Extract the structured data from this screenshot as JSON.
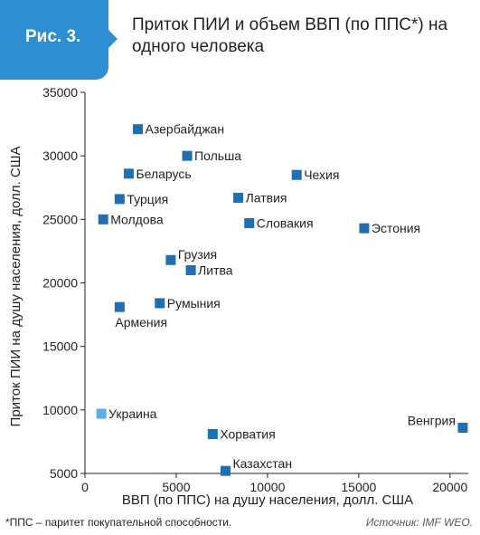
{
  "figure": {
    "badge": "Рис. 3.",
    "title": "Приток ПИИ и объем ВВП (по ППС*) на одного человека"
  },
  "footnote": "*ППС – паритет покупательной способности.",
  "source": "Источник: IMF WEO.",
  "colors": {
    "accent": "#2d8ed2",
    "point": "#1f6fb6",
    "highlight": "#5ab0e6",
    "axis": "#231f20"
  },
  "chart_data": {
    "type": "scatter",
    "title": "Приток ПИИ и объем ВВП (по ППС*) на одного человека",
    "xlabel": "ВВП (по ППС) на душу населения, долл. США",
    "ylabel": "Приток ПИИ на душу населения, долл. США",
    "xlim": [
      0,
      21000
    ],
    "ylim": [
      5000,
      35000
    ],
    "xticks": [
      0,
      5000,
      10000,
      15000,
      20000
    ],
    "yticks": [
      5000,
      10000,
      15000,
      20000,
      25000,
      30000,
      35000
    ],
    "grid": false,
    "points": [
      {
        "name": "Азербайджан",
        "x": 2900,
        "y": 32100
      },
      {
        "name": "Польша",
        "x": 5600,
        "y": 30000
      },
      {
        "name": "Беларусь",
        "x": 2400,
        "y": 28600
      },
      {
        "name": "Чехия",
        "x": 11600,
        "y": 28500
      },
      {
        "name": "Турция",
        "x": 1900,
        "y": 26600
      },
      {
        "name": "Латвия",
        "x": 8400,
        "y": 26700
      },
      {
        "name": "Молдова",
        "x": 1000,
        "y": 25000
      },
      {
        "name": "Словакия",
        "x": 9000,
        "y": 24700
      },
      {
        "name": "Эстония",
        "x": 15300,
        "y": 24300
      },
      {
        "name": "Грузия",
        "x": 4700,
        "y": 21800
      },
      {
        "name": "Литва",
        "x": 5800,
        "y": 21000
      },
      {
        "name": "Румыния",
        "x": 4100,
        "y": 18400
      },
      {
        "name": "Армения",
        "x": 1900,
        "y": 18100
      },
      {
        "name": "Украина",
        "x": 900,
        "y": 9700,
        "highlight": true
      },
      {
        "name": "Венгрия",
        "x": 20700,
        "y": 8600
      },
      {
        "name": "Хорватия",
        "x": 7000,
        "y": 8100
      },
      {
        "name": "Казахстан",
        "x": 7700,
        "y": 5200
      }
    ]
  }
}
